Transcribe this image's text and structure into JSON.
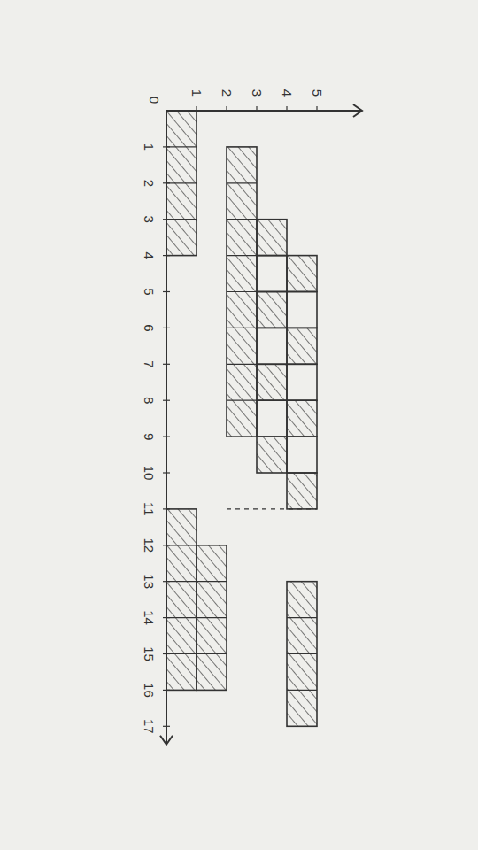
{
  "chart_data": {
    "type": "gantt",
    "xlim": [
      0,
      17.5
    ],
    "xticks": [
      0,
      1,
      2,
      3,
      4,
      5,
      6,
      7,
      8,
      9,
      10,
      11,
      12,
      13,
      14,
      15,
      16,
      17
    ],
    "ylim": [
      0,
      6.5
    ],
    "yticks": [
      1,
      2,
      3,
      4,
      5
    ],
    "color": "#333333",
    "bars": [
      {
        "level": 0,
        "start": 0,
        "end": 4,
        "hatched": true
      },
      {
        "level": 0,
        "start": 11,
        "end": 16,
        "hatched": true
      },
      {
        "level": 1,
        "start": 12,
        "end": 16,
        "hatched": true
      },
      {
        "level": 2,
        "start": 1,
        "end": 9,
        "hatched": true
      },
      {
        "level": 3,
        "start": 3,
        "end": 4,
        "hatched": true
      },
      {
        "level": 3,
        "start": 4,
        "end": 5,
        "hatched": false
      },
      {
        "level": 3,
        "start": 5,
        "end": 6,
        "hatched": true
      },
      {
        "level": 3,
        "start": 6,
        "end": 7,
        "hatched": false
      },
      {
        "level": 3,
        "start": 7,
        "end": 8,
        "hatched": true
      },
      {
        "level": 3,
        "start": 8,
        "end": 9,
        "hatched": false
      },
      {
        "level": 3,
        "start": 9,
        "end": 10,
        "hatched": true
      },
      {
        "level": 4,
        "start": 4,
        "end": 5,
        "hatched": true
      },
      {
        "level": 4,
        "start": 5,
        "end": 6,
        "hatched": false
      },
      {
        "level": 4,
        "start": 6,
        "end": 7,
        "hatched": true
      },
      {
        "level": 4,
        "start": 7,
        "end": 8,
        "hatched": false
      },
      {
        "level": 4,
        "start": 8,
        "end": 9,
        "hatched": true
      },
      {
        "level": 4,
        "start": 9,
        "end": 10,
        "hatched": false
      },
      {
        "level": 4,
        "start": 10,
        "end": 11,
        "hatched": true
      },
      {
        "level": 4,
        "start": 13,
        "end": 17,
        "hatched": true
      }
    ],
    "dashed_line": {
      "x": 11,
      "y": [
        2,
        5
      ]
    }
  }
}
